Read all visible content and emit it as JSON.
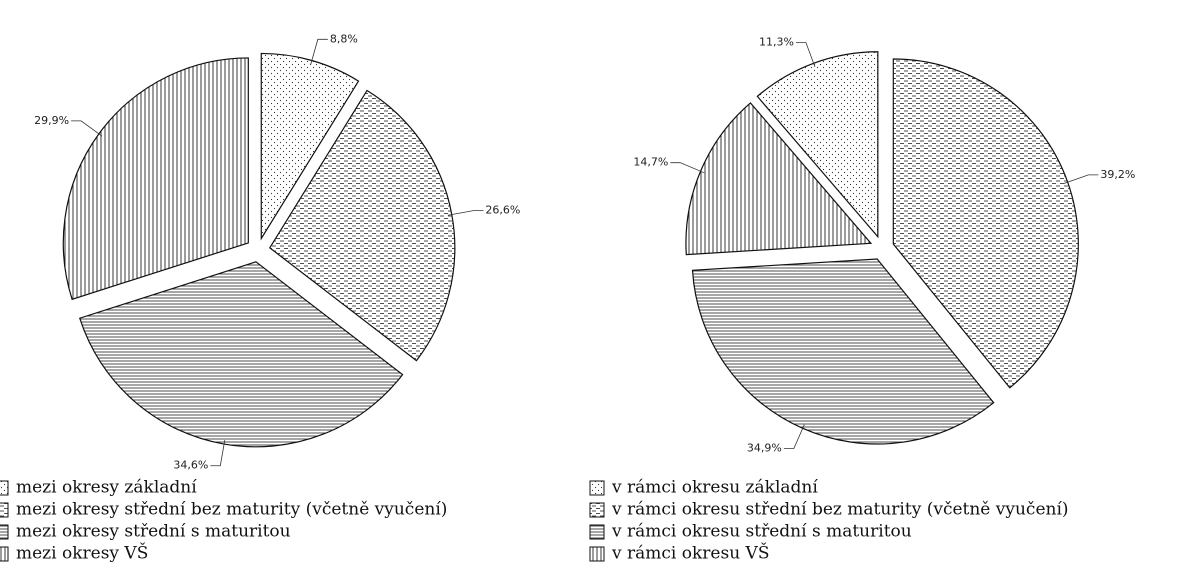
{
  "chart_data": [
    {
      "type": "pie",
      "categories": [
        "mezi okresy základní",
        "mezi okresy střední bez maturity (včetně vyučení)",
        "mezi okresy střední s maturitou",
        "mezi okresy VŠ"
      ],
      "values": [
        8.8,
        26.6,
        34.6,
        29.9
      ],
      "value_labels": [
        "8,8%",
        "26,6%",
        "34,6%",
        "29,9%"
      ]
    },
    {
      "type": "pie",
      "categories": [
        "v rámci okresu základní",
        "v rámci okresu střední bez maturity (včetně vyučení)",
        "v rámci okresu střední s maturitou",
        "v rámci okresu VŠ"
      ],
      "values": [
        11.3,
        39.2,
        34.9,
        14.7
      ],
      "value_labels": [
        "11,3%",
        "39,2%",
        "34,9%",
        "14,7%"
      ]
    }
  ]
}
